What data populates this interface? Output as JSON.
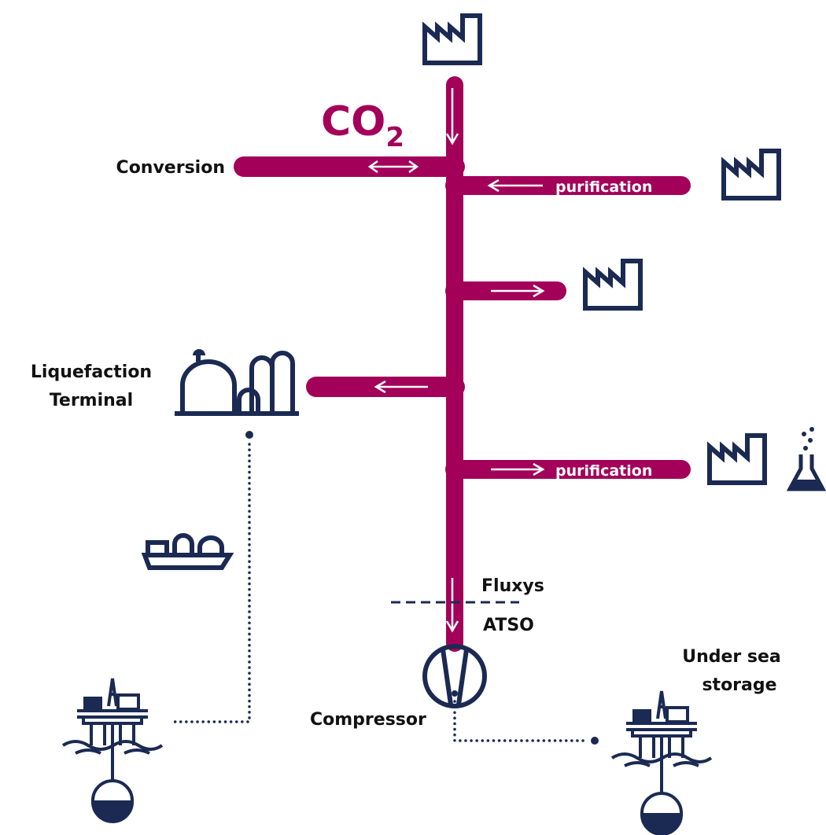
{
  "pipeline": {
    "gas": {
      "main": "CO",
      "sub": "2"
    },
    "conversion": "Conversion",
    "purification_upper": "purification",
    "purification_lower": "purification",
    "liquefaction_terminal": [
      "Liquefaction",
      "Terminal"
    ],
    "operator_upper": "Fluxys",
    "operator_lower": "ATSO",
    "compressor": "Compressor",
    "under_sea_storage": [
      "Under sea",
      "storage"
    ]
  }
}
